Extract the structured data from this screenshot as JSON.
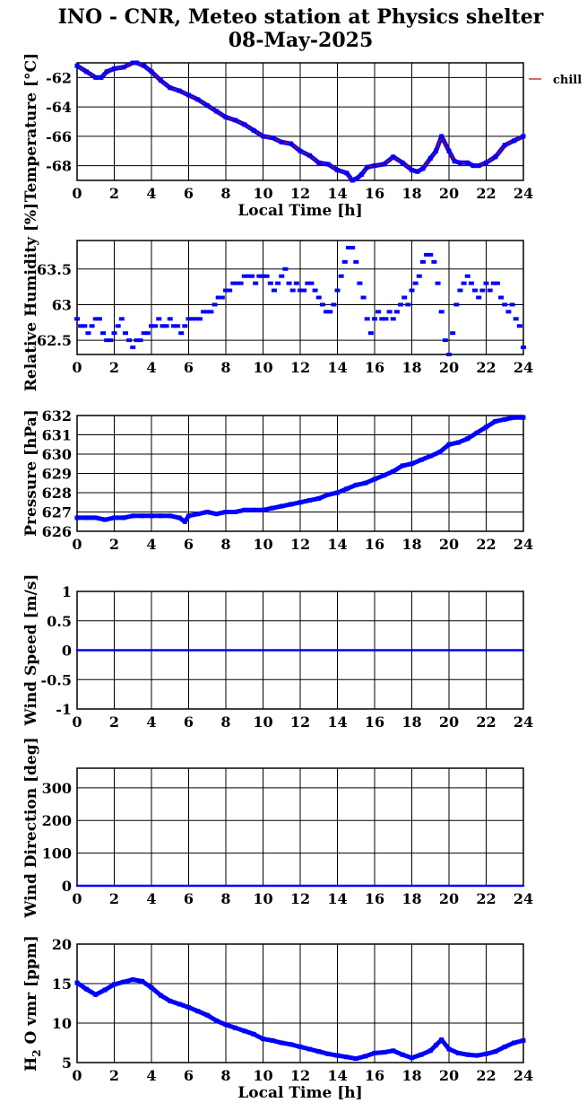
{
  "header": {
    "title": "INO - CNR, Meteo station at Physics shelter",
    "date": "08-May-2025"
  },
  "legend": {
    "label": "chill",
    "color": "#cc0000"
  },
  "colors": {
    "data": "#0000ff",
    "chill_line": "#cc0000",
    "axis": "#000000"
  },
  "chart_data": [
    {
      "type": "line",
      "name": "temperature",
      "ylabel": "Temperature [°C]",
      "xlabel": "Local Time [h]",
      "xlim": [
        0,
        24
      ],
      "ylim": [
        -69,
        -61
      ],
      "yticks": [
        -62,
        -64,
        -66,
        -68
      ],
      "yticklabels": [
        "-62",
        "-64",
        "-66",
        "-68"
      ],
      "xticks": [
        0,
        2,
        4,
        6,
        8,
        10,
        12,
        14,
        16,
        18,
        20,
        22,
        24
      ],
      "xticklabels": [
        "0",
        "2",
        "4",
        "6",
        "8",
        "10",
        "12",
        "14",
        "16",
        "18",
        "20",
        "22",
        "24"
      ],
      "series": [
        {
          "x": [
            0,
            0.5,
            1,
            1.3,
            1.6,
            2,
            2.5,
            3,
            3.2,
            3.6,
            4,
            4.5,
            5,
            5.5,
            6,
            6.5,
            7,
            7.5,
            8,
            8.5,
            9,
            9.5,
            10,
            10.5,
            11,
            11.5,
            12,
            12.5,
            13,
            13.5,
            14,
            14.5,
            14.8,
            15,
            15.3,
            15.6,
            16,
            16.5,
            17,
            17.5,
            18,
            18.3,
            18.6,
            19,
            19.3,
            19.6,
            20,
            20.3,
            20.6,
            21,
            21.3,
            21.6,
            22,
            22.5,
            23,
            23.5,
            24
          ],
          "values": [
            -61.2,
            -61.6,
            -62,
            -62,
            -61.6,
            -61.4,
            -61.3,
            -61.0,
            -61.0,
            -61.2,
            -61.6,
            -62.2,
            -62.7,
            -62.9,
            -63.2,
            -63.5,
            -63.9,
            -64.3,
            -64.7,
            -64.9,
            -65.2,
            -65.6,
            -66.0,
            -66.1,
            -66.4,
            -66.5,
            -67.0,
            -67.3,
            -67.8,
            -67.9,
            -68.3,
            -68.5,
            -69.0,
            -68.9,
            -68.6,
            -68.1,
            -68.0,
            -67.9,
            -67.4,
            -67.8,
            -68.3,
            -68.4,
            -68.2,
            -67.5,
            -67.0,
            -66.0,
            -67.0,
            -67.7,
            -67.8,
            -67.8,
            -68.0,
            -68.0,
            -67.8,
            -67.4,
            -66.6,
            -66.3,
            -66.0
          ]
        }
      ]
    },
    {
      "type": "scatter",
      "name": "humidity",
      "ylabel": "Relative Humidity [%]",
      "xlim": [
        0,
        24
      ],
      "ylim": [
        62.3,
        63.9
      ],
      "yticks": [
        62.5,
        63,
        63.5
      ],
      "yticklabels": [
        "62.5",
        "63",
        "63.5"
      ],
      "xticks": [
        0,
        2,
        4,
        6,
        8,
        10,
        12,
        14,
        16,
        18,
        20,
        22,
        24
      ],
      "xticklabels": [
        "0",
        "2",
        "4",
        "6",
        "8",
        "10",
        "12",
        "14",
        "16",
        "18",
        "20",
        "22",
        "24"
      ],
      "series": [
        {
          "x": [
            0,
            0.2,
            0.4,
            0.6,
            0.8,
            1.0,
            1.2,
            1.4,
            1.6,
            1.8,
            2.0,
            2.2,
            2.4,
            2.6,
            2.8,
            3.0,
            3.2,
            3.4,
            3.6,
            3.8,
            4.0,
            4.2,
            4.4,
            4.6,
            4.8,
            5.0,
            5.2,
            5.4,
            5.6,
            5.8,
            6.0,
            6.2,
            6.4,
            6.6,
            6.8,
            7.0,
            7.2,
            7.4,
            7.6,
            7.8,
            8.0,
            8.2,
            8.4,
            8.6,
            8.8,
            9.0,
            9.2,
            9.4,
            9.6,
            9.8,
            10.0,
            10.2,
            10.4,
            10.6,
            10.8,
            11.0,
            11.2,
            11.4,
            11.6,
            11.8,
            12.0,
            12.2,
            12.4,
            12.6,
            12.8,
            13.0,
            13.2,
            13.4,
            13.6,
            13.8,
            14.0,
            14.2,
            14.4,
            14.6,
            14.8,
            15.0,
            15.2,
            15.4,
            15.6,
            15.8,
            16.0,
            16.2,
            16.4,
            16.6,
            16.8,
            17.0,
            17.2,
            17.4,
            17.6,
            17.8,
            18.0,
            18.2,
            18.4,
            18.6,
            18.8,
            19.0,
            19.2,
            19.4,
            19.6,
            19.8,
            20.0,
            20.2,
            20.4,
            20.6,
            20.8,
            21.0,
            21.2,
            21.4,
            21.6,
            21.8,
            22.0,
            22.2,
            22.4,
            22.6,
            22.8,
            23.0,
            23.2,
            23.4,
            23.6,
            23.8,
            24.0
          ],
          "values": [
            62.8,
            62.7,
            62.7,
            62.6,
            62.7,
            62.8,
            62.8,
            62.6,
            62.5,
            62.5,
            62.6,
            62.7,
            62.8,
            62.6,
            62.5,
            62.4,
            62.5,
            62.5,
            62.6,
            62.6,
            62.7,
            62.7,
            62.8,
            62.7,
            62.7,
            62.8,
            62.7,
            62.7,
            62.6,
            62.7,
            62.8,
            62.8,
            62.8,
            62.8,
            62.9,
            62.9,
            62.9,
            63.0,
            63.1,
            63.1,
            63.2,
            63.2,
            63.3,
            63.3,
            63.3,
            63.4,
            63.4,
            63.4,
            63.3,
            63.4,
            63.4,
            63.4,
            63.3,
            63.2,
            63.3,
            63.4,
            63.5,
            63.3,
            63.2,
            63.3,
            63.2,
            63.2,
            63.3,
            63.3,
            63.2,
            63.1,
            63.0,
            62.9,
            62.9,
            63.0,
            63.2,
            63.4,
            63.6,
            63.8,
            63.8,
            63.6,
            63.3,
            63.1,
            62.8,
            62.6,
            62.8,
            62.9,
            62.8,
            62.8,
            62.9,
            62.8,
            62.9,
            63.0,
            63.1,
            63.0,
            63.2,
            63.3,
            63.4,
            63.6,
            63.7,
            63.7,
            63.6,
            63.3,
            62.9,
            62.5,
            62.3,
            62.6,
            63.0,
            63.2,
            63.3,
            63.4,
            63.3,
            63.2,
            63.1,
            63.2,
            63.3,
            63.2,
            63.3,
            63.3,
            63.1,
            63.0,
            62.9,
            63.0,
            62.8,
            62.7,
            62.4
          ]
        }
      ]
    },
    {
      "type": "line",
      "name": "pressure",
      "ylabel": "Pressure [hPa]",
      "xlim": [
        0,
        24
      ],
      "ylim": [
        626,
        632
      ],
      "yticks": [
        626,
        627,
        628,
        629,
        630,
        631,
        632
      ],
      "yticklabels": [
        "626",
        "627",
        "628",
        "629",
        "630",
        "631",
        "632"
      ],
      "xticks": [
        0,
        2,
        4,
        6,
        8,
        10,
        12,
        14,
        16,
        18,
        20,
        22,
        24
      ],
      "xticklabels": [
        "0",
        "2",
        "4",
        "6",
        "8",
        "10",
        "12",
        "14",
        "16",
        "18",
        "20",
        "22",
        "24"
      ],
      "series": [
        {
          "x": [
            0,
            0.5,
            1,
            1.5,
            2,
            2.5,
            3,
            3.5,
            4,
            4.5,
            5,
            5.5,
            5.8,
            6,
            6.5,
            7,
            7.5,
            8,
            8.5,
            9,
            9.5,
            10,
            10.5,
            11,
            11.5,
            12,
            12.5,
            13,
            13.5,
            14,
            14.5,
            15,
            15.5,
            16,
            16.5,
            17,
            17.5,
            18,
            18.5,
            19,
            19.5,
            20,
            20.5,
            21,
            21.5,
            22,
            22.5,
            23,
            23.5,
            24
          ],
          "values": [
            626.7,
            626.7,
            626.7,
            626.6,
            626.7,
            626.7,
            626.8,
            626.8,
            626.8,
            626.8,
            626.8,
            626.7,
            626.5,
            626.8,
            626.9,
            627.0,
            626.9,
            627.0,
            627.0,
            627.1,
            627.1,
            627.1,
            627.2,
            627.3,
            627.4,
            627.5,
            627.6,
            627.7,
            627.9,
            628.0,
            628.2,
            628.4,
            628.5,
            628.7,
            628.9,
            629.1,
            629.4,
            629.5,
            629.7,
            629.9,
            630.1,
            630.5,
            630.6,
            630.8,
            631.1,
            631.4,
            631.7,
            631.8,
            631.9,
            631.9
          ]
        }
      ]
    },
    {
      "type": "line",
      "name": "wind_speed",
      "ylabel": "Wind Speed [m/s]",
      "xlim": [
        0,
        24
      ],
      "ylim": [
        -1,
        1
      ],
      "yticks": [
        -1,
        -0.5,
        0,
        0.5,
        1
      ],
      "yticklabels": [
        "-1",
        "-0.5",
        "0",
        "0.5",
        "1"
      ],
      "xticks": [
        0,
        2,
        4,
        6,
        8,
        10,
        12,
        14,
        16,
        18,
        20,
        22,
        24
      ],
      "xticklabels": [
        "0",
        "2",
        "4",
        "6",
        "8",
        "10",
        "12",
        "14",
        "16",
        "18",
        "20",
        "22",
        "24"
      ],
      "series": [
        {
          "x": [
            0,
            24
          ],
          "values": [
            0,
            0
          ]
        }
      ]
    },
    {
      "type": "line",
      "name": "wind_direction",
      "ylabel": "Wind Direction [deg]",
      "xlim": [
        0,
        24
      ],
      "ylim": [
        0,
        360
      ],
      "yticks": [
        0,
        100,
        200,
        300
      ],
      "yticklabels": [
        "0",
        "100",
        "200",
        "300"
      ],
      "xticks": [
        0,
        2,
        4,
        6,
        8,
        10,
        12,
        14,
        16,
        18,
        20,
        22,
        24
      ],
      "xticklabels": [
        "0",
        "2",
        "4",
        "6",
        "8",
        "10",
        "12",
        "14",
        "16",
        "18",
        "20",
        "22",
        "24"
      ],
      "series": [
        {
          "x": [
            0,
            24
          ],
          "values": [
            0,
            0
          ]
        }
      ]
    },
    {
      "type": "line",
      "name": "h2o_vmr",
      "ylabel_main": "H",
      "ylabel_sub": "2",
      "ylabel_rest": "O vmr [ppm]",
      "xlabel": "Local Time [h]",
      "xlim": [
        0,
        24
      ],
      "ylim": [
        5,
        20
      ],
      "yticks": [
        5,
        10,
        15,
        20
      ],
      "yticklabels": [
        "5",
        "10",
        "15",
        "20"
      ],
      "xticks": [
        0,
        2,
        4,
        6,
        8,
        10,
        12,
        14,
        16,
        18,
        20,
        22,
        24
      ],
      "xticklabels": [
        "0",
        "2",
        "4",
        "6",
        "8",
        "10",
        "12",
        "14",
        "16",
        "18",
        "20",
        "22",
        "24"
      ],
      "series": [
        {
          "x": [
            0,
            0.5,
            1,
            1.5,
            2,
            2.5,
            3,
            3.5,
            4,
            4.5,
            5,
            5.5,
            6,
            6.5,
            7,
            7.5,
            8,
            8.5,
            9,
            9.5,
            10,
            10.5,
            11,
            11.5,
            12,
            12.5,
            13,
            13.5,
            14,
            14.5,
            15,
            15.5,
            16,
            16.5,
            17,
            17.5,
            18,
            18.5,
            19,
            19.3,
            19.6,
            20,
            20.5,
            21,
            21.5,
            22,
            22.5,
            23,
            23.5,
            24
          ],
          "values": [
            15.1,
            14.3,
            13.6,
            14.2,
            14.9,
            15.2,
            15.5,
            15.3,
            14.5,
            13.5,
            12.8,
            12.4,
            12.0,
            11.5,
            11.0,
            10.3,
            9.8,
            9.4,
            9.0,
            8.6,
            8.0,
            7.8,
            7.5,
            7.3,
            7.0,
            6.7,
            6.4,
            6.1,
            5.9,
            5.7,
            5.5,
            5.8,
            6.2,
            6.3,
            6.5,
            6.0,
            5.6,
            6.0,
            6.5,
            7.2,
            7.9,
            6.7,
            6.2,
            6.0,
            5.9,
            6.1,
            6.4,
            7.0,
            7.5,
            7.8
          ]
        }
      ]
    }
  ]
}
